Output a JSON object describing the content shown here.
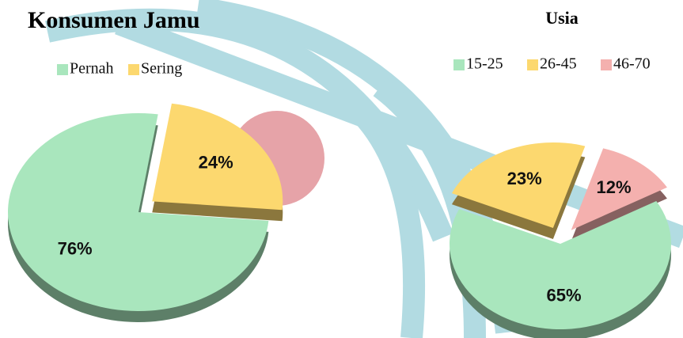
{
  "chart_data": [
    {
      "type": "pie",
      "title": "Konsumen Jamu",
      "categories": [
        "Pernah",
        "Sering"
      ],
      "values": [
        76,
        24
      ],
      "value_labels": [
        "76%",
        "24%"
      ],
      "colors": [
        "#a9e6bd",
        "#fcd86f"
      ]
    },
    {
      "type": "pie",
      "title": "Usia",
      "categories": [
        "15-25",
        "26-45",
        "46-70"
      ],
      "values": [
        65,
        23,
        12
      ],
      "value_labels": [
        "65%",
        "23%",
        "12%"
      ],
      "colors": [
        "#a9e6bd",
        "#fcd86f",
        "#f4b0ae"
      ]
    }
  ]
}
